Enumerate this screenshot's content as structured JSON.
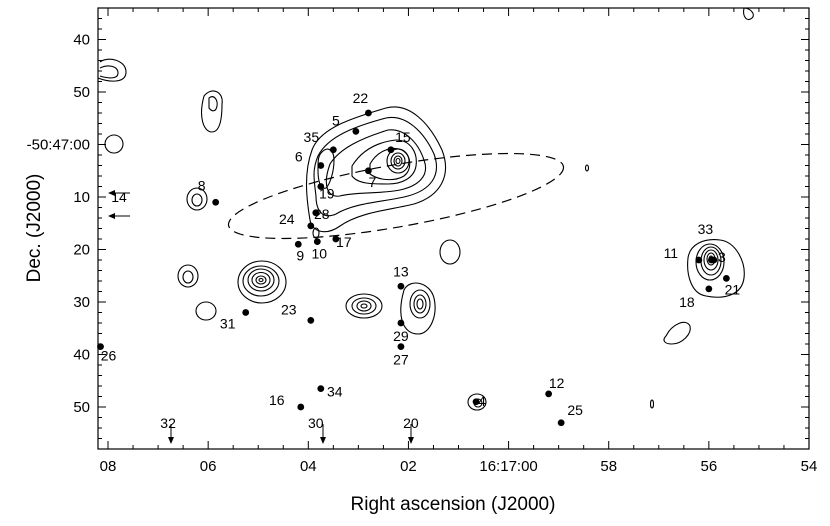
{
  "chart_data": {
    "type": "scatter",
    "xlabel": "Right ascension (J2000)",
    "ylabel": "Dec. (J2000)",
    "x_ticks": [
      {
        "ra_s": 68,
        "label": "08"
      },
      {
        "ra_s": 66,
        "label": "06"
      },
      {
        "ra_s": 64,
        "label": "04"
      },
      {
        "ra_s": 62,
        "label": "02"
      },
      {
        "ra_s": 60,
        "label": "16:17:00"
      },
      {
        "ra_s": 58,
        "label": "58"
      },
      {
        "ra_s": 56,
        "label": "56"
      },
      {
        "ra_s": 54,
        "label": "54"
      }
    ],
    "y_ticks": [
      {
        "dec": 40,
        "label": "40"
      },
      {
        "dec": 50,
        "label": "50"
      },
      {
        "dec": 60,
        "label": "-50:47:00"
      },
      {
        "dec": 70,
        "label": "10"
      },
      {
        "dec": 80,
        "label": "20"
      },
      {
        "dec": 90,
        "label": "30"
      },
      {
        "dec": 100,
        "label": "40"
      },
      {
        "dec": 110,
        "label": "50"
      }
    ],
    "xlim": [
      68.2,
      54.0
    ],
    "ylim": [
      34.0,
      118.0
    ],
    "sources": [
      {
        "id": "1",
        "ra_s": 62.45,
        "dec": 63.0,
        "lx": 0,
        "ly": 0
      },
      {
        "id": "3",
        "ra_s": 55.9,
        "dec": 82.0,
        "lx": 8,
        "ly": 2
      },
      {
        "id": "4",
        "ra_s": 60.65,
        "dec": 109.0,
        "lx": 6,
        "ly": 4
      },
      {
        "id": "5",
        "ra_s": 63.05,
        "dec": 57.5,
        "lx": -20,
        "ly": -6
      },
      {
        "id": "6",
        "ra_s": 63.75,
        "dec": 64.0,
        "lx": -22,
        "ly": -4
      },
      {
        "id": "7",
        "ra_s": 62.8,
        "dec": 65.0,
        "lx": 4,
        "ly": 16
      },
      {
        "id": "8",
        "ra_s": 65.85,
        "dec": 71.0,
        "lx": -14,
        "ly": -12
      },
      {
        "id": "9",
        "ra_s": 64.2,
        "dec": 79.0,
        "lx": 2,
        "ly": 16
      },
      {
        "id": "10",
        "ra_s": 63.82,
        "dec": 78.5,
        "lx": 2,
        "ly": 17
      },
      {
        "id": "11",
        "ra_s": 56.2,
        "dec": 82.0,
        "lx": -28,
        "ly": -2
      },
      {
        "id": "12",
        "ra_s": 59.2,
        "dec": 107.5,
        "lx": 8,
        "ly": -6
      },
      {
        "id": "13",
        "ra_s": 62.15,
        "dec": 87.0,
        "lx": 0,
        "ly": -10
      },
      {
        "id": "14",
        "ra_s": 68.3,
        "dec": 70.0,
        "lx": 26,
        "ly": 5
      },
      {
        "id": "15",
        "ra_s": 62.35,
        "dec": 61.0,
        "lx": 12,
        "ly": -8
      },
      {
        "id": "16",
        "ra_s": 64.15,
        "dec": 110.0,
        "lx": -24,
        "ly": -2
      },
      {
        "id": "17",
        "ra_s": 63.45,
        "dec": 78.0,
        "lx": 8,
        "ly": 8
      },
      {
        "id": "18",
        "ra_s": 56.0,
        "dec": 87.5,
        "lx": -22,
        "ly": 18
      },
      {
        "id": "19",
        "ra_s": 63.75,
        "dec": 68.0,
        "lx": 6,
        "ly": 12
      },
      {
        "id": "20",
        "ra_s": 61.95,
        "dec": 115.5,
        "lx": 0,
        "ly": -8
      },
      {
        "id": "21",
        "ra_s": 55.65,
        "dec": 85.5,
        "lx": 6,
        "ly": 16
      },
      {
        "id": "22",
        "ra_s": 62.8,
        "dec": 54.0,
        "lx": -8,
        "ly": -10
      },
      {
        "id": "23",
        "ra_s": 63.95,
        "dec": 93.5,
        "lx": -22,
        "ly": -6
      },
      {
        "id": "24",
        "ra_s": 63.95,
        "dec": 75.5,
        "lx": -24,
        "ly": -2
      },
      {
        "id": "25",
        "ra_s": 58.95,
        "dec": 113.0,
        "lx": 14,
        "ly": -8
      },
      {
        "id": "26",
        "ra_s": 68.15,
        "dec": 98.5,
        "lx": 8,
        "ly": 14
      },
      {
        "id": "27",
        "ra_s": 62.15,
        "dec": 98.5,
        "lx": 0,
        "ly": 18
      },
      {
        "id": "28",
        "ra_s": 63.85,
        "dec": 73.0,
        "lx": 6,
        "ly": 6
      },
      {
        "id": "29",
        "ra_s": 62.15,
        "dec": 94.0,
        "lx": 0,
        "ly": 18
      },
      {
        "id": "30",
        "ra_s": 63.85,
        "dec": 115.5,
        "lx": 0,
        "ly": -8
      },
      {
        "id": "31",
        "ra_s": 65.25,
        "dec": 92.0,
        "lx": -18,
        "ly": 16
      },
      {
        "id": "32",
        "ra_s": 66.8,
        "dec": 115.5,
        "lx": 0,
        "ly": -8
      },
      {
        "id": "33",
        "ra_s": 55.95,
        "dec": 82.0,
        "lx": -6,
        "ly": -26
      },
      {
        "id": "34",
        "ra_s": 63.75,
        "dec": 106.5,
        "lx": 14,
        "ly": 8
      },
      {
        "id": "35",
        "ra_s": 63.5,
        "dec": 61.0,
        "lx": -22,
        "ly": -8
      }
    ]
  }
}
